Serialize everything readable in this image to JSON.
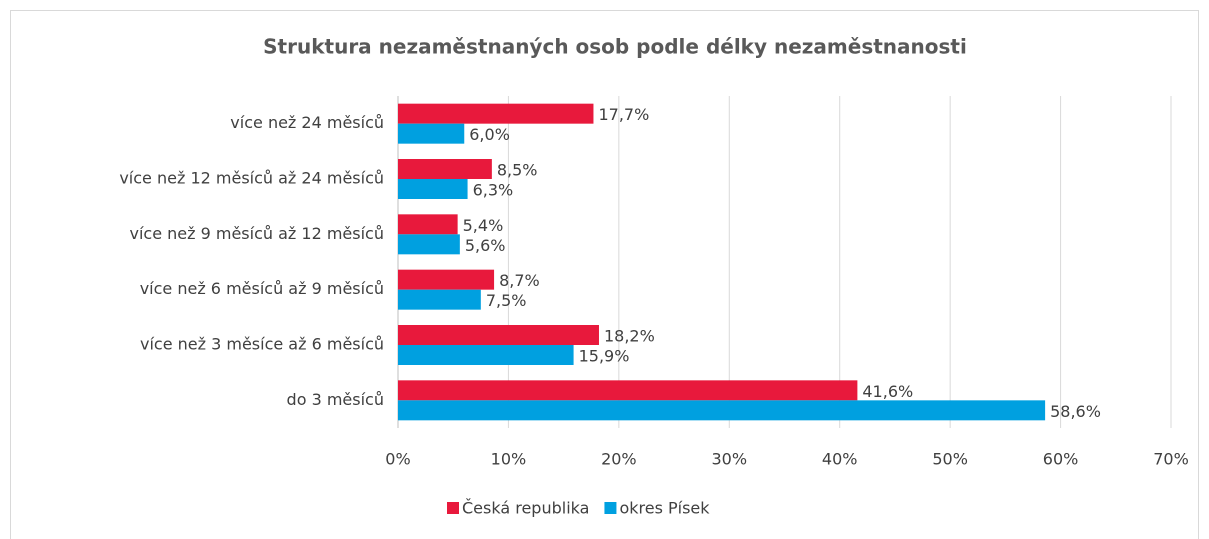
{
  "chart_data": {
    "type": "hbar",
    "title": "Struktura nezaměstnaných osob podle délky nezaměstnanosti",
    "categories": [
      "více než 24 měsíců",
      "více než 12 měsíců až 24 měsíců",
      "více než 9 měsíců až 12 měsíců",
      "více než 6 měsíců až 9 měsíců",
      "více než 3 měsíce až 6 měsíců",
      "do 3 měsíců"
    ],
    "series": [
      {
        "name": "Česká republika",
        "color": "#e8193c",
        "values": [
          17.7,
          8.5,
          5.4,
          8.7,
          18.2,
          41.6
        ],
        "value_labels": [
          "17,7%",
          "8,5%",
          "5,4%",
          "8,7%",
          "18,2%",
          "41,6%"
        ]
      },
      {
        "name": "okres Písek",
        "color": "#00a0e0",
        "values": [
          6.0,
          6.3,
          5.6,
          7.5,
          15.9,
          58.6
        ],
        "value_labels": [
          "6,0%",
          "6,3%",
          "5,6%",
          "7,5%",
          "15,9%",
          "58,6%"
        ]
      }
    ],
    "xlim": [
      0,
      70
    ],
    "xticks": [
      {
        "value": 0,
        "label": "0%"
      },
      {
        "value": 10,
        "label": "10%"
      },
      {
        "value": 20,
        "label": "20%"
      },
      {
        "value": 30,
        "label": "30%"
      },
      {
        "value": 40,
        "label": "40%"
      },
      {
        "value": 50,
        "label": "50%"
      },
      {
        "value": 60,
        "label": "60%"
      },
      {
        "value": 70,
        "label": "70%"
      }
    ],
    "grid": true,
    "legend": "bottom"
  }
}
